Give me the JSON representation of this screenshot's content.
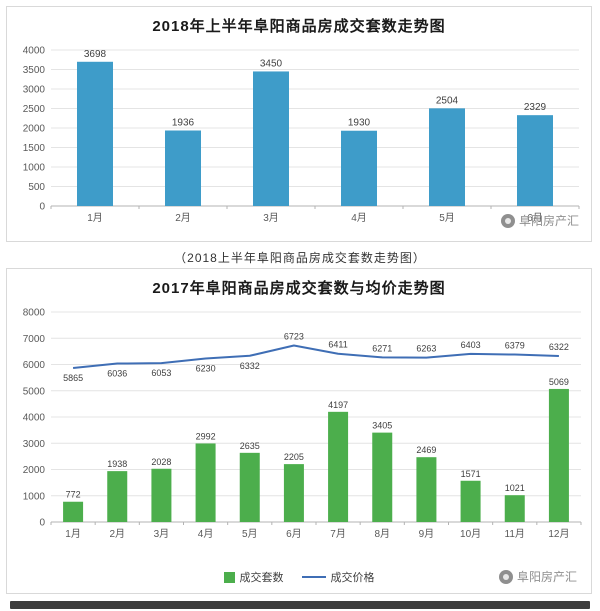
{
  "caption": "（2018上半年阜阳商品房成交套数走势图）",
  "watermark": {
    "text": "阜阳房产汇",
    "icon": "camera-logo-icon"
  },
  "colors": {
    "bar_blue": "#3e9cc9",
    "bar_green": "#4cae4c",
    "line_blue": "#3f6eb5",
    "grid": "#e4e4e4",
    "axis": "#b3b3b3",
    "tick_text": "#595959",
    "value_text": "#404040"
  },
  "chart_data": [
    {
      "type": "bar",
      "title": "2018年上半年阜阳商品房成交套数走势图",
      "categories": [
        "1月",
        "2月",
        "3月",
        "4月",
        "5月",
        "6月"
      ],
      "values": [
        3698,
        1936,
        3450,
        1930,
        2504,
        2329
      ],
      "xlabel": "",
      "ylabel": "",
      "ylim": [
        0,
        4000
      ],
      "ytick_step": 500,
      "grid": true,
      "legend_position": "none"
    },
    {
      "type": "bar+line",
      "title": "2017年阜阳商品房成交套数与均价走势图",
      "categories": [
        "1月",
        "2月",
        "3月",
        "4月",
        "5月",
        "6月",
        "7月",
        "8月",
        "9月",
        "10月",
        "11月",
        "12月"
      ],
      "series": [
        {
          "name": "成交套数",
          "type": "bar",
          "color": "#4cae4c",
          "values": [
            772,
            1938,
            2028,
            2992,
            2635,
            2205,
            4197,
            3405,
            2469,
            1571,
            1021,
            5069
          ]
        },
        {
          "name": "成交价格",
          "type": "line",
          "color": "#3f6eb5",
          "values": [
            5865,
            6036,
            6053,
            6230,
            6332,
            6723,
            6411,
            6271,
            6263,
            6403,
            6379,
            6322
          ]
        }
      ],
      "xlabel": "",
      "ylabel": "",
      "ylim": [
        0,
        8000
      ],
      "ytick_step": 1000,
      "grid": true,
      "legend_position": "bottom"
    }
  ]
}
